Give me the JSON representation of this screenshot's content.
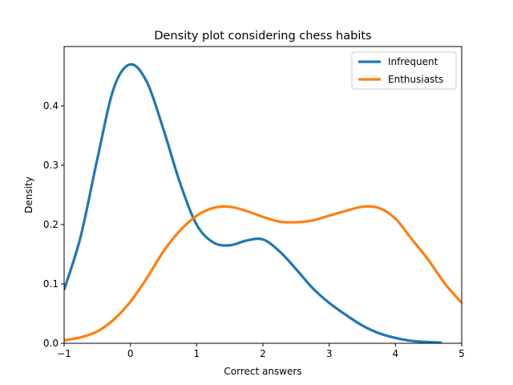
{
  "chart_data": {
    "type": "line",
    "title": "Density plot considering chess habits",
    "xlabel": "Correct answers",
    "ylabel": "Density",
    "xlim": [
      -1,
      5
    ],
    "ylim": [
      0,
      0.5
    ],
    "xticks": [
      -1,
      0,
      1,
      2,
      3,
      4,
      5
    ],
    "yticks": [
      0.0,
      0.1,
      0.2,
      0.3,
      0.4
    ],
    "ytick_labels": [
      "0.0",
      "0.1",
      "0.2",
      "0.3",
      "0.4"
    ],
    "grid": false,
    "legend": "top-right",
    "series": [
      {
        "name": "Infrequent",
        "color": "#1f77b4",
        "x": [
          -1,
          -0.75,
          -0.5,
          -0.25,
          0,
          0.25,
          0.5,
          0.75,
          1,
          1.25,
          1.5,
          1.75,
          2,
          2.25,
          2.5,
          2.75,
          3,
          3.25,
          3.5,
          3.75,
          4,
          4.25,
          4.5,
          4.7
        ],
        "y": [
          0.09,
          0.18,
          0.31,
          0.43,
          0.47,
          0.44,
          0.36,
          0.27,
          0.2,
          0.17,
          0.165,
          0.173,
          0.175,
          0.155,
          0.125,
          0.093,
          0.068,
          0.048,
          0.03,
          0.017,
          0.009,
          0.004,
          0.002,
          0.001
        ]
      },
      {
        "name": "Enthusiasts",
        "color": "#ff7f0e",
        "x": [
          -1,
          -0.75,
          -0.5,
          -0.25,
          0,
          0.25,
          0.5,
          0.75,
          1,
          1.25,
          1.5,
          1.75,
          2,
          2.25,
          2.5,
          2.75,
          3,
          3.25,
          3.5,
          3.75,
          4,
          4.25,
          4.5,
          4.75,
          5
        ],
        "y": [
          0.005,
          0.01,
          0.02,
          0.04,
          0.07,
          0.11,
          0.155,
          0.19,
          0.215,
          0.228,
          0.23,
          0.223,
          0.213,
          0.205,
          0.204,
          0.207,
          0.215,
          0.223,
          0.23,
          0.228,
          0.21,
          0.175,
          0.14,
          0.1,
          0.068
        ]
      }
    ]
  }
}
